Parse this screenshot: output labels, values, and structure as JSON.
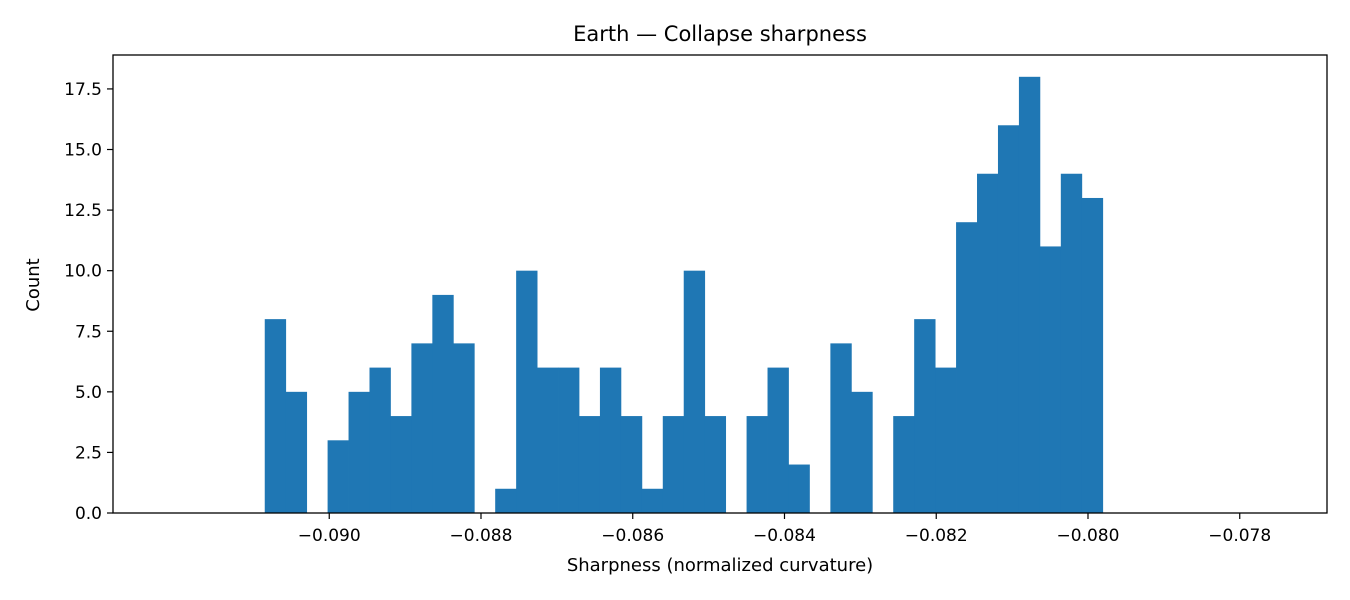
{
  "chart_data": {
    "type": "bar",
    "title": "Earth — Collapse sharpness",
    "xlabel": "Sharpness (normalized curvature)",
    "ylabel": "Count",
    "bar_color": "#1f77b4",
    "bin_start": -0.09085,
    "bin_width": 0.0002761,
    "counts": [
      8,
      5,
      0,
      3,
      5,
      6,
      4,
      7,
      9,
      7,
      0,
      1,
      10,
      6,
      6,
      4,
      6,
      4,
      1,
      4,
      10,
      4,
      0,
      4,
      6,
      2,
      0,
      7,
      5,
      0,
      4,
      8,
      6,
      12,
      14,
      16,
      18,
      11,
      14,
      13
    ],
    "xlim": [
      -0.09285,
      -0.07685
    ],
    "ylim": [
      0,
      18.9
    ],
    "x_ticks": [
      {
        "value": -0.09,
        "label": "−0.090"
      },
      {
        "value": -0.088,
        "label": "−0.088"
      },
      {
        "value": -0.086,
        "label": "−0.086"
      },
      {
        "value": -0.084,
        "label": "−0.084"
      },
      {
        "value": -0.082,
        "label": "−0.082"
      },
      {
        "value": -0.08,
        "label": "−0.080"
      },
      {
        "value": -0.078,
        "label": "−0.078"
      }
    ],
    "y_ticks": [
      {
        "value": 0,
        "label": "0.0"
      },
      {
        "value": 2.5,
        "label": "2.5"
      },
      {
        "value": 5,
        "label": "5.0"
      },
      {
        "value": 7.5,
        "label": "7.5"
      },
      {
        "value": 10,
        "label": "10.0"
      },
      {
        "value": 12.5,
        "label": "12.5"
      },
      {
        "value": 15,
        "label": "15.0"
      },
      {
        "value": 17.5,
        "label": "17.5"
      }
    ],
    "grid": false
  }
}
